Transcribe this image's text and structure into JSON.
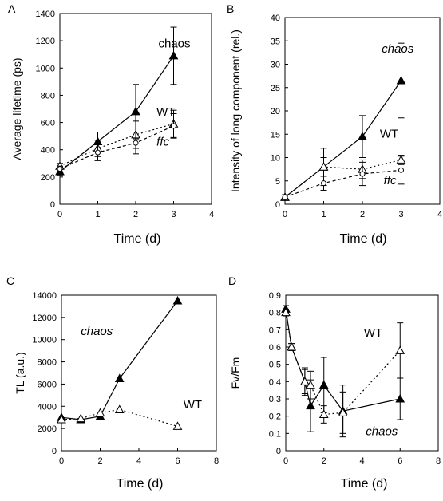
{
  "chart_data": [
    {
      "panel": "A",
      "type": "line",
      "ylabel": "Average lifetime (ps)",
      "xlabel": "Time (d)",
      "xlim": [
        0,
        4
      ],
      "ylim": [
        0,
        1400
      ],
      "xticks": [
        "0",
        "1",
        "2",
        "3",
        "4"
      ],
      "yticks": [
        "0",
        "200",
        "400",
        "600",
        "800",
        "1000",
        "1200",
        "1400"
      ],
      "annotations": [
        {
          "text": "chaos",
          "x": 2.6,
          "y": 1150,
          "italic": false
        },
        {
          "text": "WT",
          "x": 2.55,
          "y": 650,
          "italic": false
        },
        {
          "text": "ffc",
          "x": 2.55,
          "y": 430,
          "italic": true
        }
      ],
      "series": [
        {
          "x": [
            0,
            1,
            2,
            3
          ],
          "y": [
            240,
            460,
            680,
            1090
          ],
          "err": [
            30,
            70,
            200,
            210
          ],
          "marker": "filled-triangle",
          "line": "solid"
        },
        {
          "x": [
            0,
            1,
            2,
            3
          ],
          "y": [
            280,
            410,
            510,
            590
          ],
          "err": [
            20,
            60,
            100,
            100
          ],
          "marker": "open-triangle",
          "line": "dotted"
        },
        {
          "x": [
            0,
            1,
            2,
            3
          ],
          "y": [
            260,
            380,
            450,
            575
          ],
          "err": [
            20,
            60,
            80,
            90
          ],
          "marker": "open-circle",
          "line": "dashed"
        }
      ]
    },
    {
      "panel": "B",
      "type": "line",
      "ylabel": "Intensity of long component (rel.)",
      "xlabel": "Time (d)",
      "xlim": [
        0,
        4
      ],
      "ylim": [
        0,
        40
      ],
      "xticks": [
        "0",
        "1",
        "2",
        "3",
        "4"
      ],
      "yticks": [
        "0",
        "5",
        "10",
        "15",
        "20",
        "25",
        "30",
        "35",
        "40"
      ],
      "annotations": [
        {
          "text": "chaos",
          "x": 2.5,
          "y": 32.5,
          "italic": true
        },
        {
          "text": "WT",
          "x": 2.45,
          "y": 14.3,
          "italic": false
        },
        {
          "text": "ffc",
          "x": 2.55,
          "y": 4.3,
          "italic": true
        }
      ],
      "series": [
        {
          "x": [
            0,
            1,
            2,
            3
          ],
          "y": [
            1.5,
            8,
            14.5,
            26.5
          ],
          "err": [
            0.5,
            4,
            4.5,
            8
          ],
          "marker": "filled-triangle",
          "line": "solid"
        },
        {
          "x": [
            0,
            1,
            2,
            3
          ],
          "y": [
            1.5,
            8,
            7.5,
            9.5
          ],
          "err": [
            0.5,
            2,
            2,
            1
          ],
          "marker": "open-triangle",
          "line": "dotted"
        },
        {
          "x": [
            0,
            1,
            2,
            3
          ],
          "y": [
            1.5,
            4.5,
            6.5,
            7.3
          ],
          "err": [
            0.5,
            1.5,
            2.5,
            3
          ],
          "marker": "open-circle",
          "line": "dashed"
        }
      ]
    },
    {
      "panel": "C",
      "type": "line",
      "ylabel": "TL (a.u.)",
      "xlabel": "Time (d)",
      "xlim": [
        0,
        8
      ],
      "ylim": [
        0,
        14000
      ],
      "xticks": [
        "0",
        "2",
        "4",
        "6",
        "8"
      ],
      "yticks": [
        "0",
        "2000",
        "4000",
        "6000",
        "8000",
        "10000",
        "12000",
        "14000"
      ],
      "annotations": [
        {
          "text": "chaos",
          "x": 1.0,
          "y": 10400,
          "italic": true
        },
        {
          "text": "WT",
          "x": 6.3,
          "y": 3800,
          "italic": false
        }
      ],
      "series": [
        {
          "x": [
            0,
            1,
            2,
            3,
            6
          ],
          "y": [
            3000,
            2800,
            3100,
            6500,
            13500
          ],
          "err": [],
          "marker": "filled-triangle",
          "line": "solid"
        },
        {
          "x": [
            0,
            1,
            2,
            3,
            6
          ],
          "y": [
            2800,
            2900,
            3400,
            3700,
            2200
          ],
          "err": [],
          "marker": "open-triangle",
          "line": "dotted"
        }
      ]
    },
    {
      "panel": "D",
      "type": "line",
      "ylabel": "Fv/Fm",
      "xlabel": "Time (d)",
      "xlim": [
        0,
        8
      ],
      "ylim": [
        0,
        0.9
      ],
      "xticks": [
        "0",
        "2",
        "4",
        "6",
        "8"
      ],
      "yticks": [
        "0",
        "0.1",
        "0.2",
        "0.3",
        "0.4",
        "0.5",
        "0.6",
        "0.7",
        "0.8",
        "0.9"
      ],
      "annotations": [
        {
          "text": "WT",
          "x": 4.1,
          "y": 0.66,
          "italic": false
        },
        {
          "text": "chaos",
          "x": 4.2,
          "y": 0.09,
          "italic": true
        }
      ],
      "series": [
        {
          "x": [
            0,
            0.3,
            1,
            1.3,
            2,
            3,
            6
          ],
          "y": [
            0.82,
            0.6,
            0.4,
            0.26,
            0.38,
            0.23,
            0.3
          ],
          "err": [
            0.02,
            0.02,
            0.08,
            0.15,
            0.16,
            0.15,
            0.12
          ],
          "marker": "filled-triangle",
          "line": "solid"
        },
        {
          "x": [
            0,
            0.3,
            1,
            1.3,
            2,
            3,
            6
          ],
          "y": [
            0.8,
            0.6,
            0.4,
            0.38,
            0.21,
            0.22,
            0.58
          ],
          "err": [
            0.02,
            0.02,
            0.07,
            0.08,
            0.05,
            0.12,
            0.16
          ],
          "marker": "open-triangle",
          "line": "dotted"
        }
      ]
    }
  ]
}
